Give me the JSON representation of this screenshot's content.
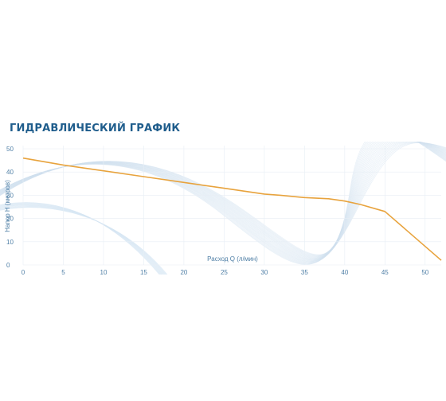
{
  "chart_data": {
    "type": "line",
    "title": "ГИДРАВЛИЧЕСКИЙ ГРАФИК",
    "xlabel": "Расход Q (л/мин)",
    "ylabel": "Напор H (метров)",
    "xlim": [
      0,
      52
    ],
    "ylim": [
      0,
      50
    ],
    "x_ticks": [
      "0",
      "5",
      "10",
      "15",
      "20",
      "25",
      "30",
      "35",
      "40",
      "45",
      "50"
    ],
    "y_ticks": [
      "0",
      "10",
      "20",
      "30",
      "40",
      "50"
    ],
    "grid": true,
    "series": [
      {
        "color": "#e8a33d",
        "x": [
          0,
          5,
          10,
          15,
          20,
          25,
          30,
          32,
          35,
          38,
          40,
          42,
          45,
          52
        ],
        "y": [
          46,
          43,
          40.5,
          38,
          35.5,
          33,
          30.5,
          30,
          29,
          28.5,
          27.5,
          26,
          23,
          2
        ]
      }
    ]
  }
}
